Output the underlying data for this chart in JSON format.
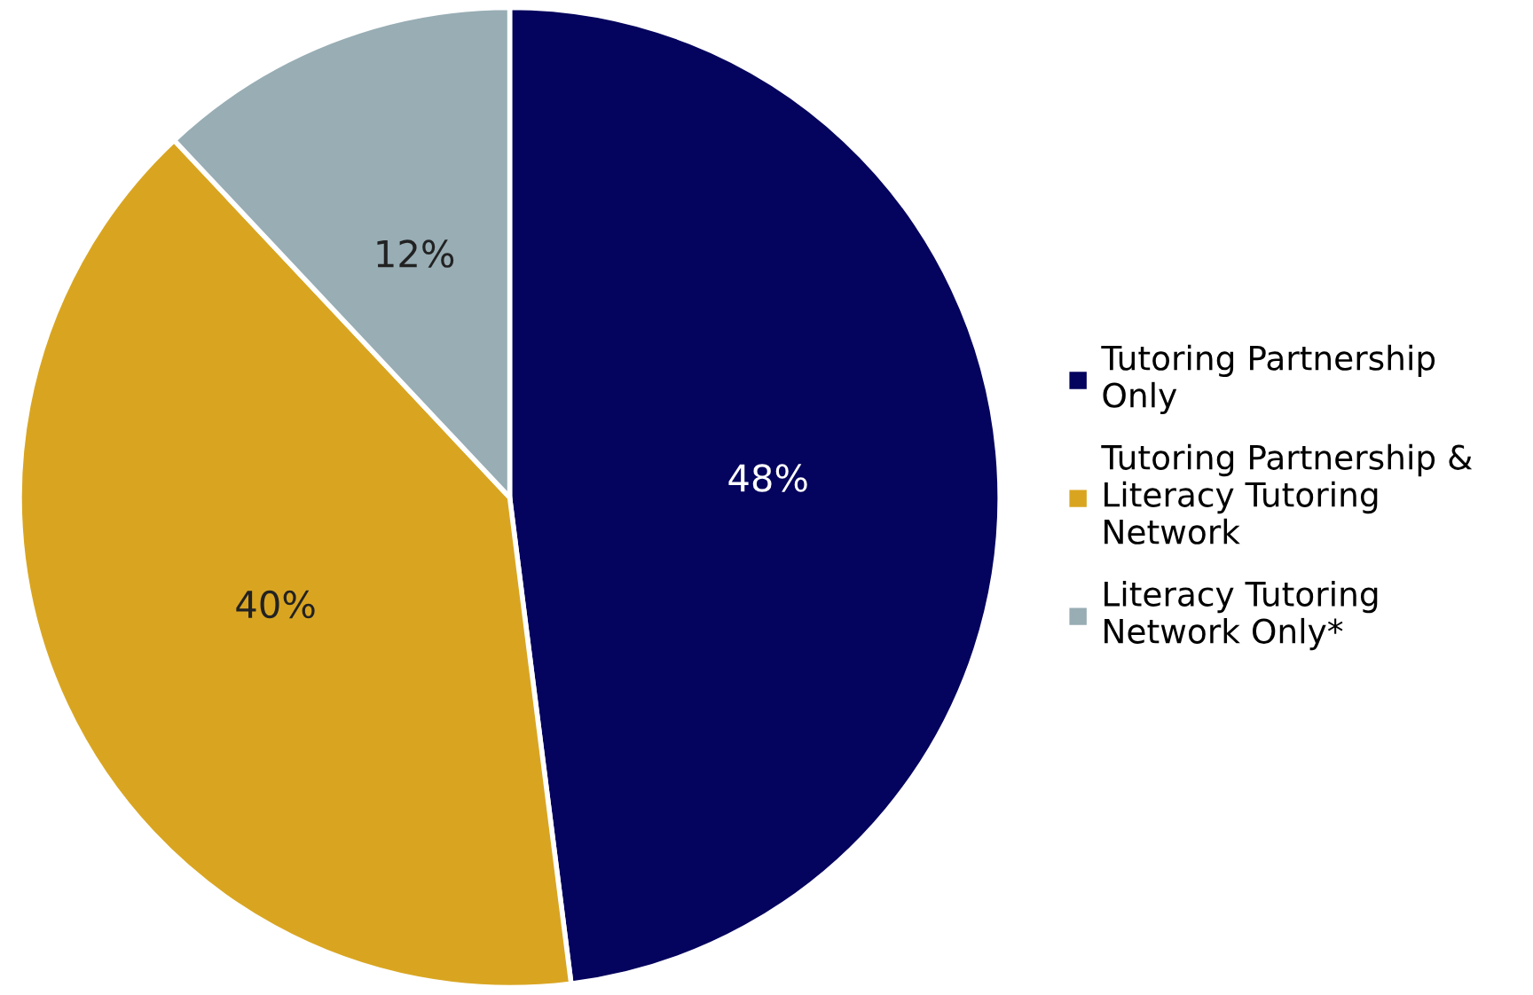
{
  "chart_data": {
    "type": "pie",
    "categories": [
      "Tutoring Partnership Only",
      "Tutoring Partnership & Literacy Tutoring Network",
      "Literacy Tutoring Network Only*"
    ],
    "values": [
      48,
      40,
      12
    ],
    "colors": [
      "#04045e",
      "#d9a521",
      "#98adb4"
    ],
    "value_labels": [
      "48%",
      "40%",
      "12%"
    ],
    "legend": "right"
  }
}
